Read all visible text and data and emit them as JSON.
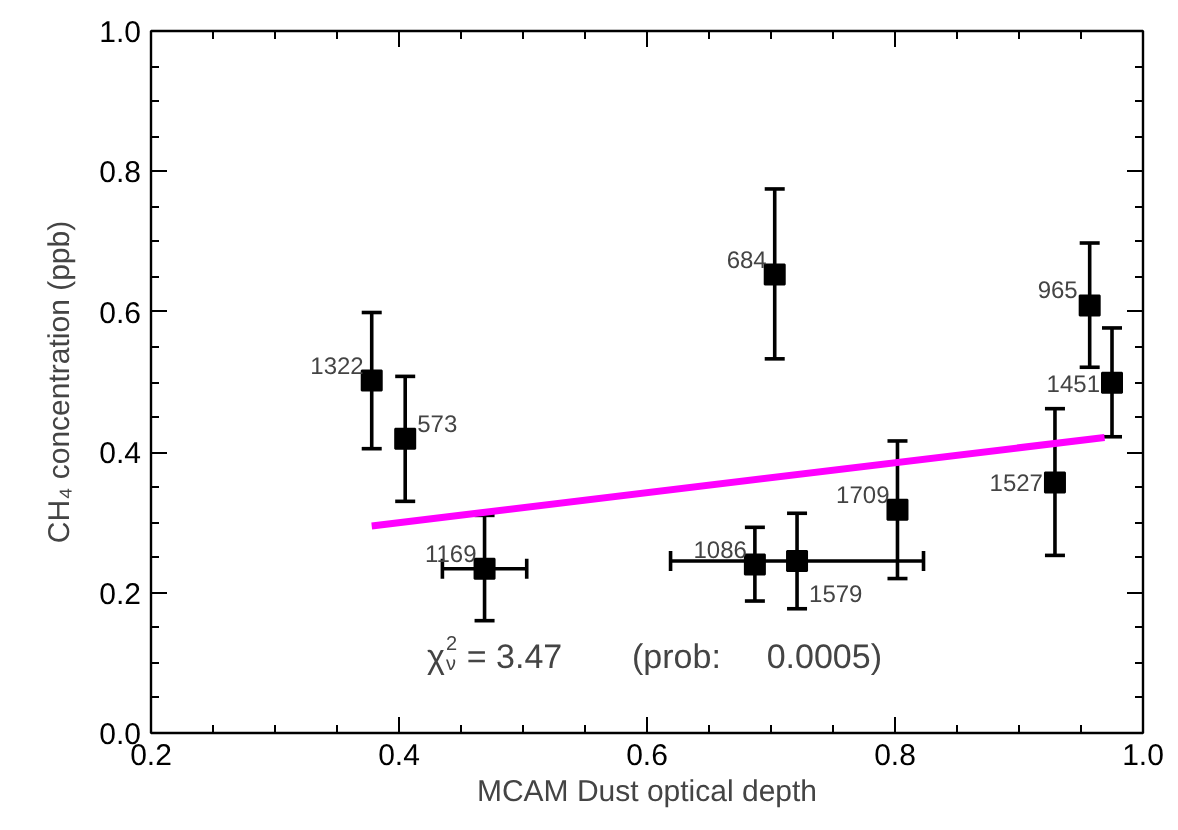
{
  "chart_data": {
    "type": "scatter",
    "xlabel": "MCAM Dust optical depth",
    "ylabel": "CH₄ concentration (ppb)",
    "xlim": [
      0.2,
      1.0
    ],
    "ylim": [
      0.0,
      1.0
    ],
    "xticks": [
      0.2,
      {
        "value": 0.4,
        "label": "0.4"
      },
      {
        "value": 0.6,
        "label": "0.6"
      },
      {
        "value": 0.8,
        "label": "0.8"
      },
      {
        "value": 1.0,
        "label": "1.0"
      }
    ],
    "yticks": [
      {
        "value": 0.0,
        "label": "0.0"
      },
      0.2,
      0.4,
      0.6,
      0.8,
      {
        "value": 1.0,
        "label": "1.0"
      }
    ],
    "grid": false,
    "series": [
      {
        "color": "#000000",
        "marker": "square",
        "x": [
          0.378,
          0.405,
          0.469,
          0.703,
          0.687,
          0.721,
          0.802,
          0.929,
          0.957,
          0.975
        ],
        "values": [
          0.502,
          0.419,
          0.234,
          0.653,
          0.24,
          0.245,
          0.318,
          0.357,
          0.609,
          0.499
        ],
        "errors": [
          [
            0.405,
            0.599
          ],
          [
            0.33,
            0.508
          ],
          [
            0.16,
            0.31
          ],
          [
            0.533,
            0.775
          ],
          [
            0.188,
            0.293
          ],
          [
            0.177,
            0.313
          ],
          [
            0.22,
            0.416
          ],
          [
            0.253,
            0.462
          ],
          [
            0.521,
            0.698
          ],
          [
            0.422,
            0.577
          ]
        ],
        "xerrors": [
          null,
          null,
          [
            0.435,
            0.503
          ],
          null,
          null,
          [
            0.619,
            0.823
          ],
          null,
          null,
          null,
          null
        ]
      },
      {
        "type": "line",
        "color": "#ff00ff",
        "x": [
          0.378,
          0.969
        ],
        "values": [
          0.295,
          0.421
        ]
      }
    ],
    "annotations": [
      "χ$_{ν}$$^{2}$ = 3.47     (prob:  0.0005)",
      {
        "text": "1322",
        "x": 0.378,
        "y": 0.502
      },
      {
        "text": "573",
        "x": 0.405,
        "y": 0.419
      },
      {
        "text": "1169",
        "x": 0.469,
        "y": 0.234
      },
      {
        "text": "684",
        "x": 0.703,
        "y": 0.653
      },
      {
        "text": "1086",
        "x": 0.687,
        "y": 0.24
      },
      {
        "text": "1579",
        "x": 0.721,
        "y": 0.245
      },
      {
        "text": "1709",
        "x": 0.802,
        "y": 0.318
      },
      {
        "text": "1527",
        "x": 0.929,
        "y": 0.357
      },
      {
        "text": "965",
        "x": 0.957,
        "y": 0.609
      },
      {
        "text": "1451",
        "x": 0.975,
        "y": 0.499
      }
    ]
  }
}
